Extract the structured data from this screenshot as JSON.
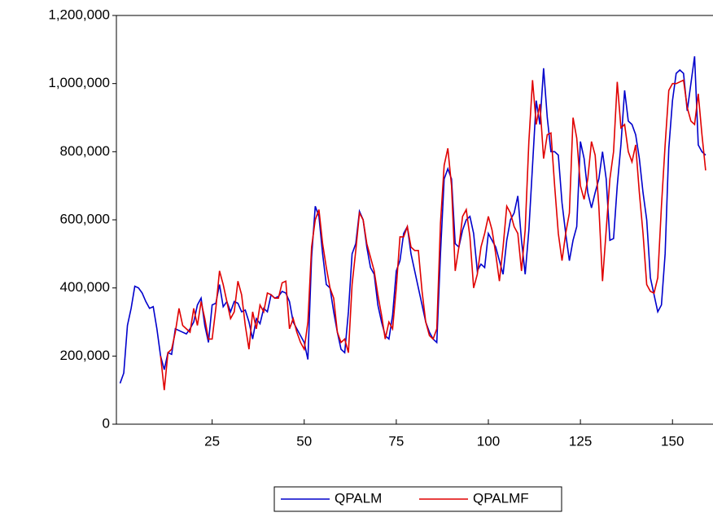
{
  "chart_data": {
    "type": "line",
    "x": [
      0,
      1,
      2,
      3,
      4,
      5,
      6,
      7,
      8,
      9,
      10,
      11,
      12,
      13,
      14,
      15,
      16,
      17,
      18,
      19,
      20,
      21,
      22,
      23,
      24,
      25,
      26,
      27,
      28,
      29,
      30,
      31,
      32,
      33,
      34,
      35,
      36,
      37,
      38,
      39,
      40,
      41,
      42,
      43,
      44,
      45,
      46,
      47,
      48,
      49,
      50,
      51,
      52,
      53,
      54,
      55,
      56,
      57,
      58,
      59,
      60,
      61,
      62,
      63,
      64,
      65,
      66,
      67,
      68,
      69,
      70,
      71,
      72,
      73,
      74,
      75,
      76,
      77,
      78,
      79,
      80,
      81,
      82,
      83,
      84,
      85,
      86,
      87,
      88,
      89,
      90,
      91,
      92,
      93,
      94,
      95,
      96,
      97,
      98,
      99,
      100,
      101,
      102,
      103,
      104,
      105,
      106,
      107,
      108,
      109,
      110,
      111,
      112,
      113,
      114,
      115,
      116,
      117,
      118,
      119,
      120,
      121,
      122,
      123,
      124,
      125,
      126,
      127,
      128,
      129,
      130,
      131,
      132,
      133,
      134,
      135,
      136,
      137,
      138,
      139,
      140,
      141,
      142,
      143,
      144,
      145,
      146,
      147,
      148,
      149,
      150,
      151,
      152,
      153,
      154,
      155,
      156,
      157,
      158,
      159
    ],
    "series": [
      {
        "name": "QPALM",
        "color": "#0000cc",
        "values": [
          120000,
          150000,
          290000,
          340000,
          405000,
          400000,
          385000,
          360000,
          340000,
          345000,
          280000,
          200000,
          160000,
          210000,
          205000,
          280000,
          275000,
          270000,
          265000,
          280000,
          300000,
          350000,
          370000,
          290000,
          240000,
          350000,
          355000,
          410000,
          345000,
          360000,
          330000,
          360000,
          355000,
          330000,
          335000,
          300000,
          250000,
          310000,
          295000,
          340000,
          330000,
          380000,
          370000,
          375000,
          390000,
          385000,
          360000,
          300000,
          280000,
          260000,
          240000,
          190000,
          490000,
          640000,
          610000,
          500000,
          410000,
          400000,
          330000,
          270000,
          220000,
          210000,
          330000,
          500000,
          530000,
          625000,
          600000,
          520000,
          460000,
          440000,
          350000,
          300000,
          260000,
          250000,
          320000,
          450000,
          480000,
          560000,
          580000,
          500000,
          450000,
          400000,
          350000,
          300000,
          270000,
          250000,
          240000,
          500000,
          720000,
          750000,
          720000,
          530000,
          520000,
          570000,
          600000,
          610000,
          560000,
          450000,
          470000,
          460000,
          560000,
          540000,
          520000,
          480000,
          440000,
          540000,
          600000,
          620000,
          670000,
          540000,
          440000,
          570000,
          760000,
          950000,
          880000,
          1045000,
          900000,
          800000,
          800000,
          790000,
          650000,
          560000,
          480000,
          540000,
          580000,
          830000,
          780000,
          680000,
          635000,
          680000,
          720000,
          800000,
          720000,
          540000,
          545000,
          700000,
          820000,
          980000,
          890000,
          880000,
          850000,
          780000,
          680000,
          600000,
          430000,
          380000,
          330000,
          350000,
          500000,
          810000,
          950000,
          1030000,
          1040000,
          1030000,
          920000,
          1000000,
          1080000,
          820000,
          800000,
          790000
        ]
      },
      {
        "name": "QPALMF",
        "color": "#e00000",
        "values": [
          null,
          null,
          null,
          null,
          null,
          null,
          null,
          null,
          null,
          null,
          null,
          200000,
          100000,
          210000,
          220000,
          270000,
          340000,
          290000,
          280000,
          270000,
          340000,
          290000,
          360000,
          310000,
          250000,
          250000,
          340000,
          450000,
          410000,
          360000,
          310000,
          330000,
          420000,
          380000,
          290000,
          220000,
          330000,
          280000,
          350000,
          330000,
          385000,
          380000,
          370000,
          370000,
          415000,
          420000,
          280000,
          310000,
          270000,
          240000,
          220000,
          300000,
          520000,
          600000,
          630000,
          530000,
          460000,
          400000,
          370000,
          270000,
          240000,
          250000,
          210000,
          410000,
          510000,
          620000,
          600000,
          530000,
          490000,
          450000,
          380000,
          320000,
          250000,
          300000,
          280000,
          400000,
          550000,
          550000,
          580000,
          520000,
          510000,
          510000,
          390000,
          300000,
          260000,
          250000,
          280000,
          590000,
          760000,
          810000,
          700000,
          450000,
          520000,
          610000,
          630000,
          550000,
          400000,
          440000,
          520000,
          560000,
          610000,
          570000,
          500000,
          420000,
          520000,
          640000,
          620000,
          580000,
          560000,
          450000,
          570000,
          830000,
          1010000,
          880000,
          940000,
          780000,
          850000,
          855000,
          700000,
          560000,
          480000,
          560000,
          620000,
          900000,
          840000,
          700000,
          660000,
          720000,
          830000,
          790000,
          640000,
          420000,
          570000,
          720000,
          800000,
          1005000,
          870000,
          880000,
          800000,
          770000,
          820000,
          680000,
          560000,
          410000,
          390000,
          385000,
          430000,
          640000,
          820000,
          980000,
          1000000,
          1000000,
          1005000,
          1010000,
          930000,
          890000,
          880000,
          970000,
          850000,
          745000
        ]
      }
    ],
    "xlim": [
      -1,
      161
    ],
    "xticks": [
      25,
      50,
      75,
      100,
      125,
      150
    ],
    "ylim": [
      0,
      1200000
    ],
    "yticks": [
      0,
      {
        "value": 200000,
        "label": "200,000"
      },
      {
        "value": 400000,
        "label": "400,000"
      },
      {
        "value": 600000,
        "label": "600,000"
      },
      {
        "value": 800000,
        "label": "800,000"
      },
      {
        "value": 1000000,
        "label": "1,000,000"
      },
      {
        "value": 1200000,
        "label": "1,200,000"
      }
    ],
    "legend": "bottom"
  }
}
